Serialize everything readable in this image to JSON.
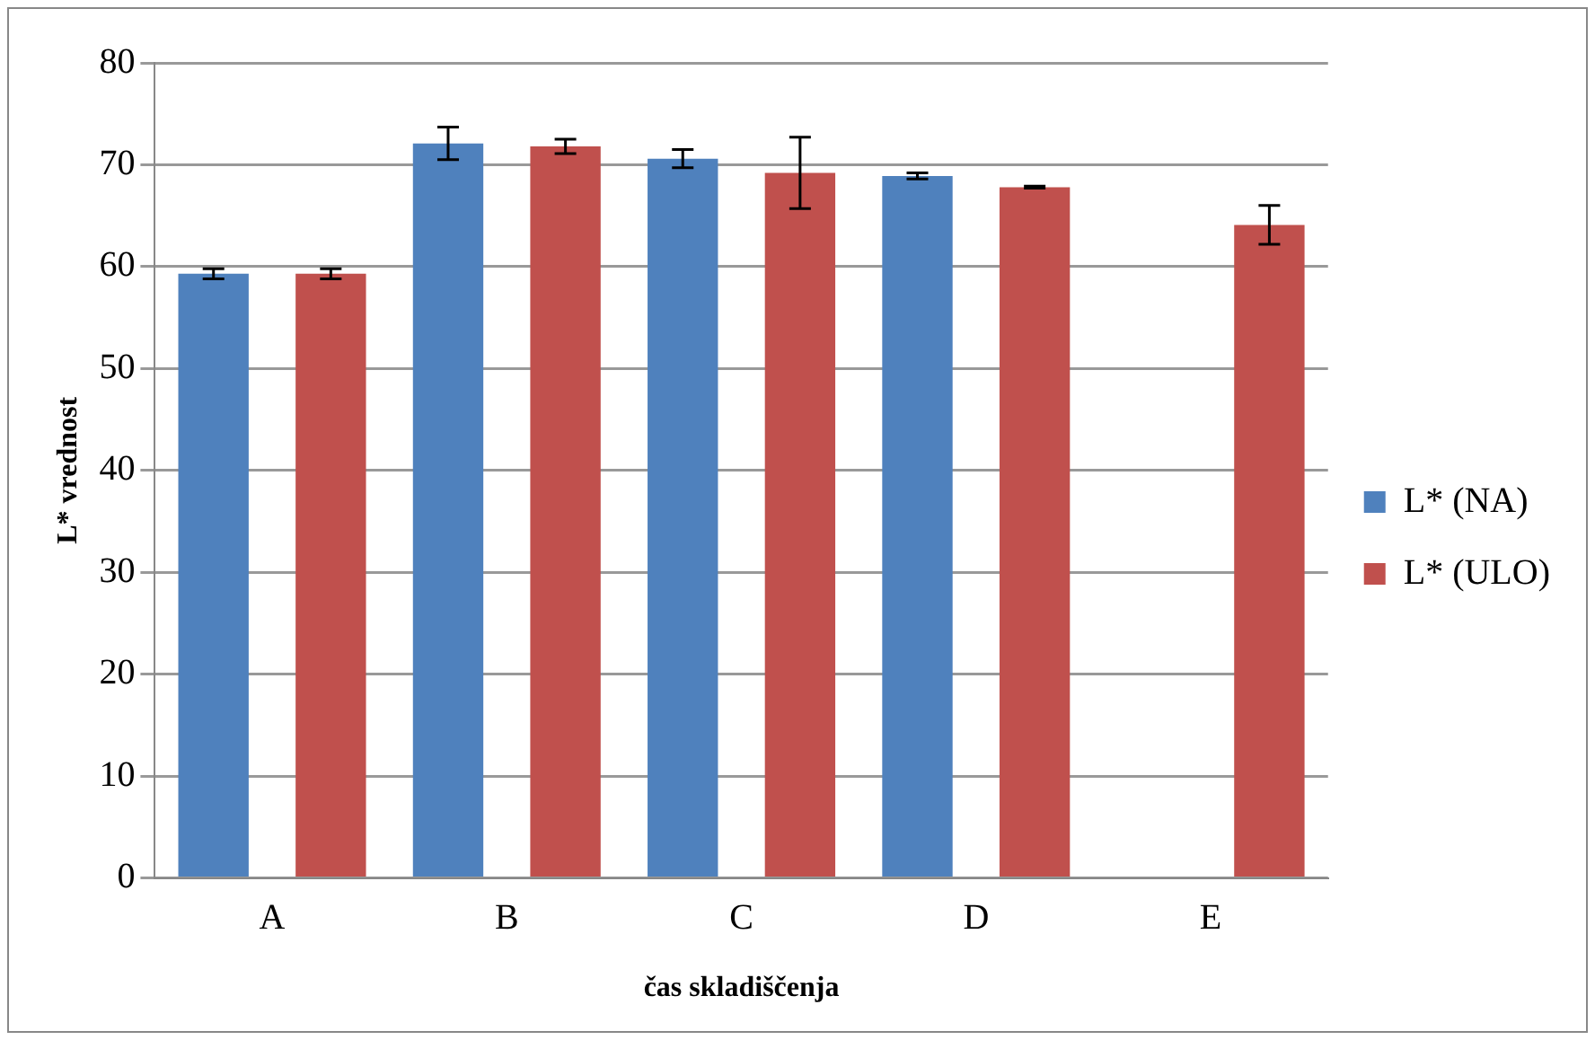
{
  "chart_data": {
    "type": "bar",
    "xlabel": "čas skladiščenja",
    "ylabel": "L* vrednost",
    "categories": [
      "A",
      "B",
      "C",
      "D",
      "E"
    ],
    "series": [
      {
        "name": "L* (NA)",
        "color": "#4f81bd",
        "values": [
          59.3,
          72.1,
          70.6,
          68.9,
          null
        ],
        "errors": [
          0.5,
          1.6,
          0.9,
          0.3,
          null
        ]
      },
      {
        "name": "L* (ULO)",
        "color": "#c0504d",
        "values": [
          59.3,
          71.8,
          69.2,
          67.8,
          64.1
        ],
        "errors": [
          0.5,
          0.7,
          3.5,
          0.1,
          1.9
        ]
      }
    ],
    "ylim": [
      0,
      80
    ],
    "yticks": [
      0,
      10,
      20,
      30,
      40,
      50,
      60,
      70,
      80
    ],
    "grid": "y",
    "legend": "right"
  }
}
